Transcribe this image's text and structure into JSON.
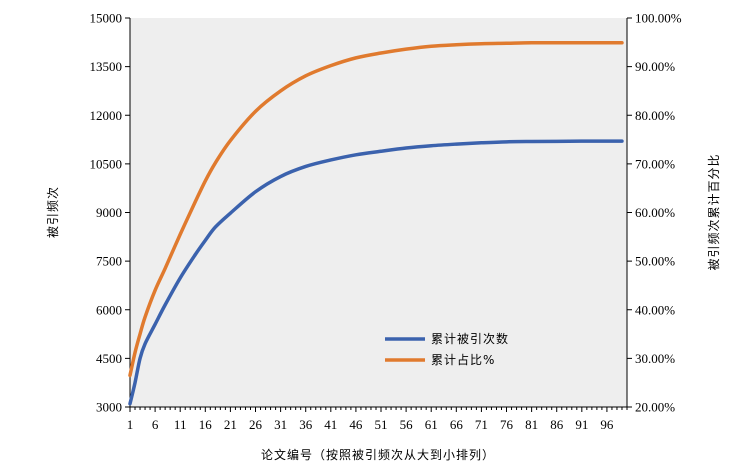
{
  "chart_data": {
    "type": "line",
    "xlabel": "论文编号（按照被引频次从大到小排列）",
    "ylabel": "被引频次",
    "y2label": "被引频次累计百分比",
    "xlim": [
      1,
      100
    ],
    "ylim": [
      3000,
      15000
    ],
    "y2lim": [
      20,
      100
    ],
    "x_ticks": [
      "1",
      "6",
      "11",
      "16",
      "21",
      "26",
      "31",
      "36",
      "41",
      "46",
      "51",
      "56",
      "61",
      "66",
      "71",
      "76",
      "81",
      "86",
      "91",
      "96"
    ],
    "y_ticks": [
      "3000",
      "4500",
      "6000",
      "7500",
      "9000",
      "10500",
      "12000",
      "13500",
      "15000"
    ],
    "y2_ticks": [
      "20.00%",
      "30.00%",
      "40.00%",
      "50.00%",
      "60.00%",
      "70.00%",
      "80.00%",
      "90.00%",
      "100.00%"
    ],
    "legend_position": "lower-right-inside",
    "grid": false,
    "plot_background": "#eeeeee",
    "series": [
      {
        "name": "累计被引次数",
        "axis": "left",
        "color": "#3b62ad",
        "x": [
          1,
          2,
          3,
          4,
          6,
          8,
          11,
          14,
          16,
          18,
          21,
          26,
          31,
          36,
          41,
          46,
          51,
          56,
          61,
          66,
          71,
          76,
          81,
          86,
          91,
          96,
          99
        ],
        "values": [
          3100,
          3750,
          4500,
          4950,
          5550,
          6150,
          6980,
          7700,
          8140,
          8550,
          8980,
          9640,
          10110,
          10420,
          10620,
          10780,
          10890,
          10990,
          11060,
          11110,
          11150,
          11180,
          11190,
          11195,
          11200,
          11200,
          11200
        ]
      },
      {
        "name": "累计占比%",
        "axis": "right",
        "color": "#e07a2e",
        "x": [
          1,
          2,
          3,
          4,
          6,
          8,
          11,
          14,
          16,
          18,
          21,
          26,
          31,
          36,
          41,
          46,
          51,
          56,
          61,
          66,
          71,
          76,
          81,
          86,
          91,
          96,
          99
        ],
        "values": [
          26.5,
          31.2,
          35.0,
          38.5,
          44.0,
          48.5,
          55.5,
          62.2,
          66.5,
          70.2,
          74.8,
          80.8,
          85.0,
          88.1,
          90.2,
          91.8,
          92.8,
          93.6,
          94.2,
          94.5,
          94.7,
          94.8,
          94.9,
          94.9,
          94.9,
          94.9,
          94.9
        ]
      }
    ]
  }
}
